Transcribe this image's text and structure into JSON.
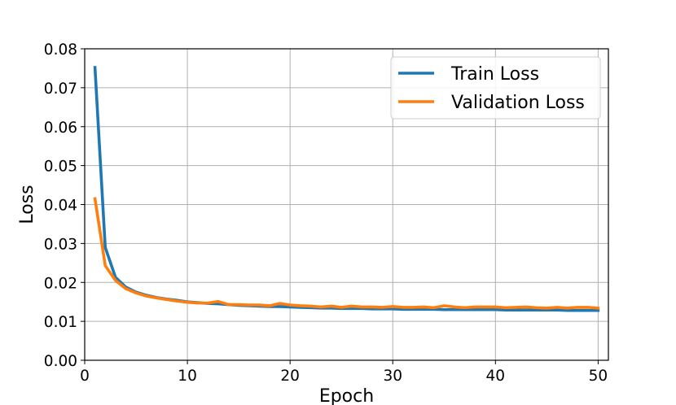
{
  "chart_data": {
    "type": "line",
    "title": "",
    "xlabel": "Epoch",
    "ylabel": "Loss",
    "xlim": [
      0,
      51
    ],
    "ylim": [
      0,
      0.08
    ],
    "xticks": [
      "0",
      "10",
      "20",
      "30",
      "40",
      "50"
    ],
    "yticks": [
      "0.00",
      "0.01",
      "0.02",
      "0.03",
      "0.04",
      "0.05",
      "0.06",
      "0.07",
      "0.08"
    ],
    "grid": true,
    "legend_position": "top-right",
    "x": [
      1,
      2,
      3,
      4,
      5,
      6,
      7,
      8,
      9,
      10,
      11,
      12,
      13,
      14,
      15,
      16,
      17,
      18,
      19,
      20,
      21,
      22,
      23,
      24,
      25,
      26,
      27,
      28,
      29,
      30,
      31,
      32,
      33,
      34,
      35,
      36,
      37,
      38,
      39,
      40,
      41,
      42,
      43,
      44,
      45,
      46,
      47,
      48,
      49,
      50
    ],
    "series": [
      {
        "name": "Train Loss",
        "color": "#1f77b4",
        "values": [
          0.0752,
          0.029,
          0.0213,
          0.0188,
          0.0175,
          0.0167,
          0.0161,
          0.0157,
          0.0154,
          0.015,
          0.0148,
          0.0146,
          0.0145,
          0.0143,
          0.0141,
          0.014,
          0.0139,
          0.0138,
          0.0138,
          0.0137,
          0.0136,
          0.0135,
          0.0134,
          0.0134,
          0.0133,
          0.0133,
          0.0133,
          0.0132,
          0.0132,
          0.0132,
          0.0131,
          0.0131,
          0.0131,
          0.0131,
          0.013,
          0.013,
          0.013,
          0.013,
          0.013,
          0.013,
          0.0129,
          0.0129,
          0.0129,
          0.0129,
          0.0129,
          0.0129,
          0.0128,
          0.0128,
          0.0128,
          0.0128
        ]
      },
      {
        "name": "Validation Loss",
        "color": "#ff7f0e",
        "values": [
          0.0415,
          0.0243,
          0.0205,
          0.0184,
          0.0173,
          0.0165,
          0.016,
          0.0156,
          0.0152,
          0.0149,
          0.0147,
          0.0147,
          0.0151,
          0.0143,
          0.0143,
          0.0142,
          0.0142,
          0.014,
          0.0146,
          0.0142,
          0.014,
          0.0139,
          0.0137,
          0.0139,
          0.0136,
          0.0139,
          0.0137,
          0.0137,
          0.0136,
          0.0138,
          0.0136,
          0.0136,
          0.0137,
          0.0135,
          0.014,
          0.0137,
          0.0135,
          0.0137,
          0.0137,
          0.0137,
          0.0135,
          0.0136,
          0.0137,
          0.0135,
          0.0134,
          0.0136,
          0.0134,
          0.0136,
          0.0136,
          0.0134
        ]
      }
    ]
  }
}
